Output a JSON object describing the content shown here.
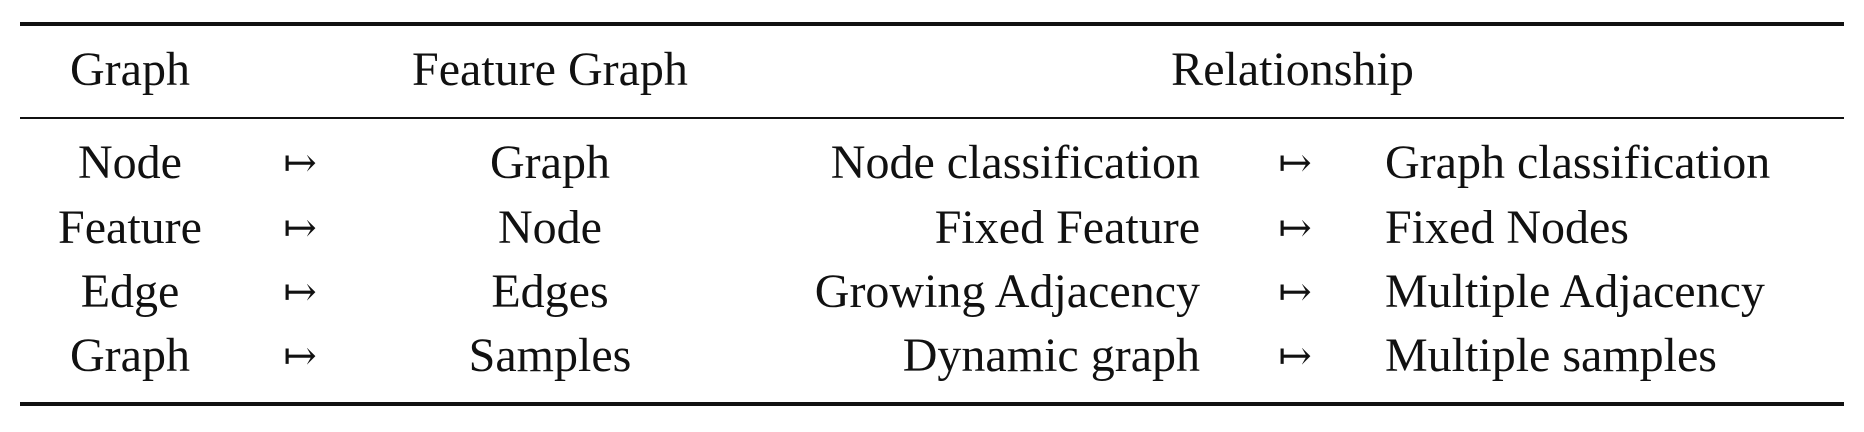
{
  "table": {
    "headers": {
      "graph": "Graph",
      "feature_graph": "Feature Graph",
      "relationship": "Relationship"
    },
    "rows": [
      {
        "graph": "Node",
        "arrow1": "↦",
        "feature_graph": "Graph",
        "rel_left": "Node classification",
        "arrow2": "↦",
        "rel_right": "Graph classification"
      },
      {
        "graph": "Feature",
        "arrow1": "↦",
        "feature_graph": "Node",
        "rel_left": "Fixed Feature",
        "arrow2": "↦",
        "rel_right": "Fixed Nodes"
      },
      {
        "graph": "Edge",
        "arrow1": "↦",
        "feature_graph": "Edges",
        "rel_left": "Growing Adjacency",
        "arrow2": "↦",
        "rel_right": "Multiple Adjacency"
      },
      {
        "graph": "Graph",
        "arrow1": "↦",
        "feature_graph": "Samples",
        "rel_left": "Dynamic graph",
        "arrow2": "↦",
        "rel_right": "Multiple samples"
      }
    ]
  }
}
